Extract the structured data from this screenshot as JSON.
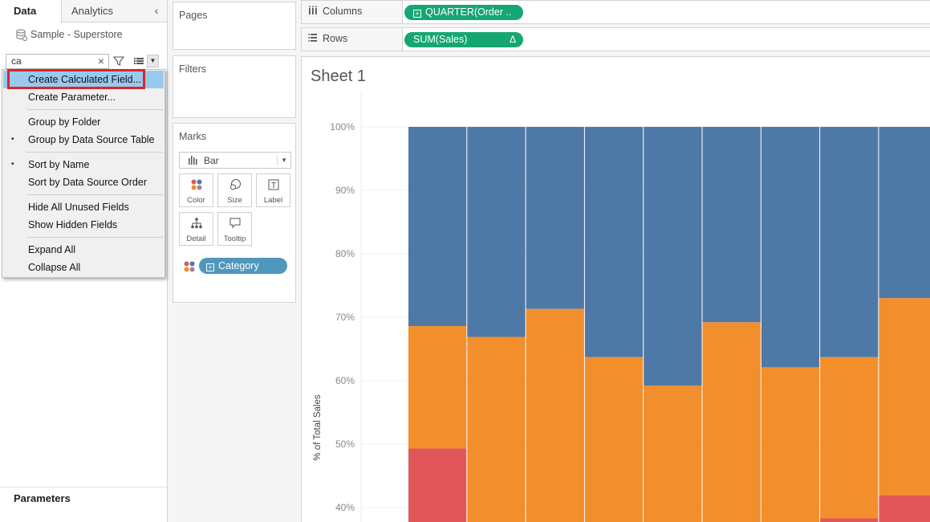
{
  "left_pane": {
    "tabs": [
      {
        "label": "Data"
      },
      {
        "label": "Analytics"
      }
    ],
    "collapse_glyph": "‹",
    "datasource": "Sample - Superstore",
    "search_value": "ca",
    "parameters_label": "Parameters"
  },
  "context_menu": {
    "items": [
      {
        "label": "Create Calculated Field...",
        "highlighted": true,
        "bullet": false
      },
      {
        "label": "Create Parameter...",
        "bullet": false
      },
      {
        "label": "Group by Folder",
        "bullet": false
      },
      {
        "label": "Group by Data Source Table",
        "bullet": true
      },
      {
        "label": "Sort by Name",
        "bullet": true
      },
      {
        "label": "Sort by Data Source Order",
        "bullet": false
      },
      {
        "label": "Hide All Unused Fields",
        "bullet": false
      },
      {
        "label": "Show Hidden Fields",
        "bullet": false
      },
      {
        "label": "Expand All",
        "bullet": false
      },
      {
        "label": "Collapse All",
        "bullet": false
      }
    ]
  },
  "cards": {
    "pages": "Pages",
    "filters": "Filters",
    "marks": "Marks",
    "mark_type": "Bar",
    "buttons": [
      {
        "label": "Color",
        "icon": "color-icon"
      },
      {
        "label": "Size",
        "icon": "size-icon"
      },
      {
        "label": "Label",
        "icon": "label-icon"
      },
      {
        "label": "Detail",
        "icon": "detail-icon"
      },
      {
        "label": "Tooltip",
        "icon": "tooltip-icon"
      }
    ],
    "color_field": "Category"
  },
  "shelves": {
    "columns_label": "Columns",
    "columns_pill": "QUARTER(Order ..",
    "rows_label": "Rows",
    "rows_pill": "SUM(Sales)",
    "rows_pill_delta": "Δ"
  },
  "sheet": {
    "title": "Sheet 1"
  },
  "chart_data": {
    "type": "bar",
    "stacked": true,
    "ylabel": "% of Total Sales",
    "ylim": [
      38,
      105
    ],
    "yticks": [
      "100%",
      "90%",
      "80%",
      "70%",
      "60%",
      "50%",
      "40%"
    ],
    "ytick_values": [
      100,
      90,
      80,
      70,
      60,
      50,
      40
    ],
    "colors": {
      "blue": "#4e79a7",
      "orange": "#f28e2b",
      "red": "#e15759"
    },
    "bars": [
      {
        "red_top": 49.3,
        "orange_top": 68.6
      },
      {
        "red_top": 0,
        "orange_top": 66.9
      },
      {
        "red_top": 0,
        "orange_top": 71.3
      },
      {
        "red_top": 0,
        "orange_top": 63.7
      },
      {
        "red_top": 0,
        "orange_top": 59.2
      },
      {
        "red_top": 0,
        "orange_top": 69.2
      },
      {
        "red_top": 0,
        "orange_top": 62.1
      },
      {
        "red_top": 38.3,
        "orange_top": 63.7
      },
      {
        "red_top": 41.9,
        "orange_top": 73.0
      }
    ]
  }
}
